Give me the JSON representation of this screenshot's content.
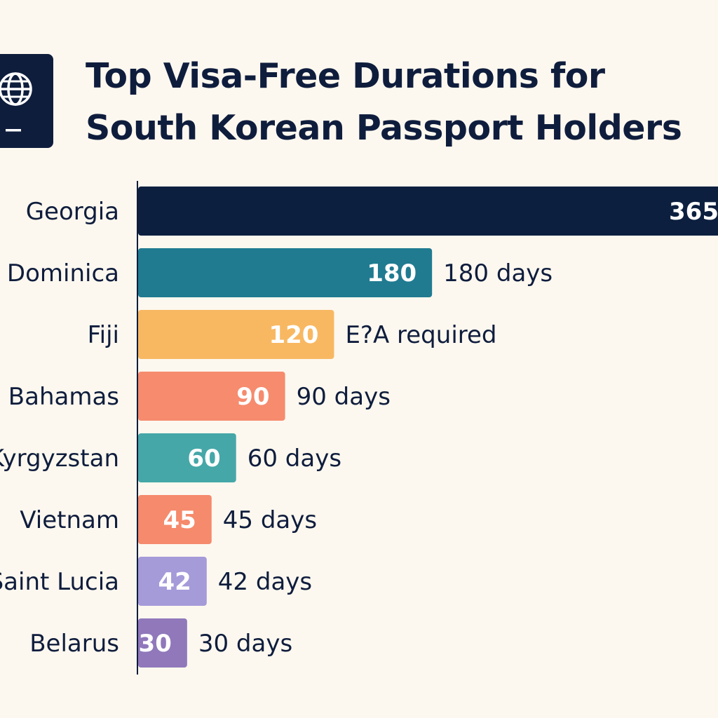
{
  "title_line1": "Top Visa-Free Durations for",
  "title_line2": "South Korean Passport Holders",
  "icon": "passport-icon",
  "chart_data": {
    "type": "bar",
    "orientation": "horizontal",
    "title": "Top Visa-Free Durations for South Korean Passport Holders",
    "categories": [
      "Georgia",
      "Dominica",
      "Fiji",
      "Bahamas",
      "Kyrgyzstan",
      "Vietnam",
      "Saint Lucia",
      "Belarus"
    ],
    "values": [
      365,
      180,
      120,
      90,
      60,
      45,
      42,
      30
    ],
    "notes": [
      "",
      "180 days",
      "E?A required",
      "90 days",
      "60 days",
      "45 days",
      "42 days",
      "30 days"
    ],
    "colors": [
      "#0c1f3f",
      "#207b91",
      "#f8b862",
      "#f68b6e",
      "#45a7a8",
      "#f58a6c",
      "#a59bd9",
      "#9078bb"
    ],
    "xlim": [
      0,
      365
    ],
    "grid": false,
    "legend": "none"
  }
}
